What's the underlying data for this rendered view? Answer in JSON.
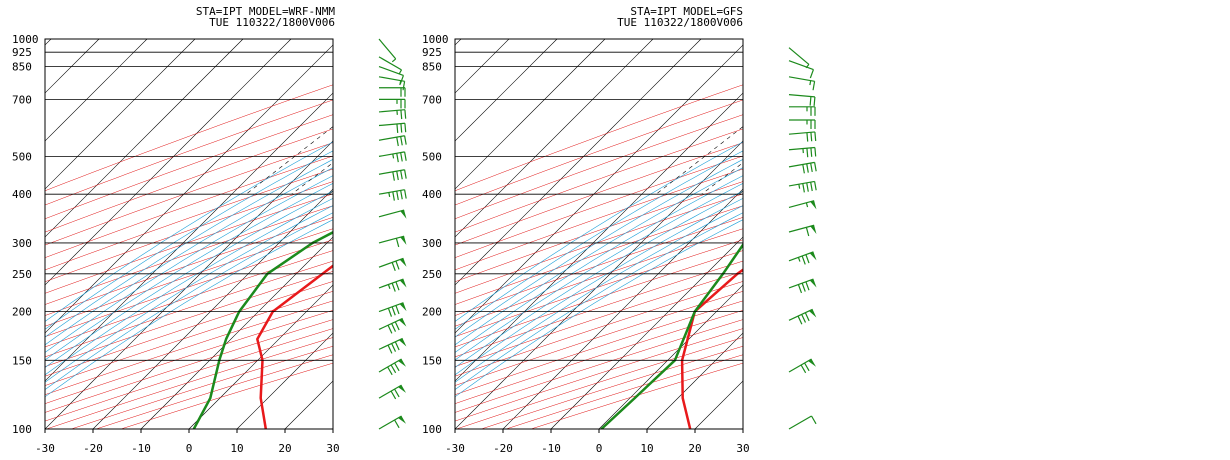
{
  "charts": [
    {
      "header_line1": "STA=IPT    MODEL=WRF-NMM",
      "header_line2": "TUE 110322/1800V006",
      "model": "WRF-NMM"
    },
    {
      "header_line1": "STA=IPT    MODEL=GFS",
      "header_line2": "TUE 110322/1800V006",
      "model": "GFS"
    }
  ],
  "colors": {
    "temperature": "#e8191b",
    "dewpoint": "#1c8a1c",
    "wind_barb": "#1c8a1c",
    "isotherm": "#000000",
    "dry_adiabat": "#e01010",
    "moist_adiabat": "#1ea0d8",
    "mixing_ratio": "#000000",
    "isobar": "#000000"
  },
  "chart_data": [
    {
      "type": "line",
      "subtype": "skew-t log-p sounding",
      "title": "STA=IPT    MODEL=WRF-NMM",
      "subtitle": "TUE 110322/1800V006",
      "xlim": [
        -30,
        30
      ],
      "ylim": [
        1000,
        100
      ],
      "y_scale": "log",
      "x_ticks": [
        -30,
        -20,
        -10,
        0,
        10,
        20,
        30
      ],
      "y_ticks": [
        1000,
        925,
        850,
        700,
        500,
        400,
        300,
        250,
        200,
        150,
        100
      ],
      "grid": true,
      "series": [
        {
          "values": [
            [
              1000,
              8.5
            ],
            [
              975,
              7
            ],
            [
              925,
              4
            ],
            [
              900,
              3
            ],
            [
              870,
              6.5
            ],
            [
              850,
              8.5
            ],
            [
              800,
              11
            ],
            [
              700,
              10.5
            ],
            [
              600,
              9
            ],
            [
              500,
              7.2
            ],
            [
              450,
              6.5
            ],
            [
              400,
              4
            ],
            [
              350,
              1
            ],
            [
              300,
              -2.5
            ],
            [
              250,
              -4.5
            ],
            [
              200,
              -7
            ],
            [
              170,
              -4.5
            ],
            [
              150,
              1
            ],
            [
              120,
              8.5
            ],
            [
              100,
              16
            ]
          ]
        },
        {
          "values": [
            [
              1000,
              -0.5
            ],
            [
              975,
              -0.8
            ],
            [
              925,
              -0.5
            ],
            [
              880,
              -0.3
            ],
            [
              850,
              -5
            ],
            [
              800,
              -16
            ],
            [
              700,
              -19
            ],
            [
              650,
              -14
            ],
            [
              550,
              -9
            ],
            [
              500,
              -10
            ],
            [
              450,
              -4
            ],
            [
              400,
              -4
            ],
            [
              350,
              -8
            ],
            [
              300,
              -13
            ],
            [
              250,
              -16
            ],
            [
              200,
              -14
            ],
            [
              170,
              -11
            ],
            [
              150,
              -8
            ],
            [
              120,
              -2
            ],
            [
              100,
              1
            ]
          ]
        }
      ],
      "wind_barbs": [
        {
          "p": 100,
          "speed_kt": 60,
          "dir": 240
        },
        {
          "p": 120,
          "speed_kt": 70,
          "dir": 240
        },
        {
          "p": 140,
          "speed_kt": 80,
          "dir": 240
        },
        {
          "p": 160,
          "speed_kt": 80,
          "dir": 245
        },
        {
          "p": 180,
          "speed_kt": 80,
          "dir": 245
        },
        {
          "p": 200,
          "speed_kt": 80,
          "dir": 250
        },
        {
          "p": 230,
          "speed_kt": 75,
          "dir": 250
        },
        {
          "p": 260,
          "speed_kt": 70,
          "dir": 250
        },
        {
          "p": 300,
          "speed_kt": 60,
          "dir": 255
        },
        {
          "p": 350,
          "speed_kt": 50,
          "dir": 255
        },
        {
          "p": 400,
          "speed_kt": 45,
          "dir": 260
        },
        {
          "p": 450,
          "speed_kt": 40,
          "dir": 260
        },
        {
          "p": 500,
          "speed_kt": 35,
          "dir": 260
        },
        {
          "p": 550,
          "speed_kt": 30,
          "dir": 260
        },
        {
          "p": 600,
          "speed_kt": 30,
          "dir": 265
        },
        {
          "p": 650,
          "speed_kt": 25,
          "dir": 265
        },
        {
          "p": 700,
          "speed_kt": 25,
          "dir": 270
        },
        {
          "p": 750,
          "speed_kt": 20,
          "dir": 270
        },
        {
          "p": 800,
          "speed_kt": 15,
          "dir": 280
        },
        {
          "p": 850,
          "speed_kt": 10,
          "dir": 290
        },
        {
          "p": 900,
          "speed_kt": 5,
          "dir": 300
        },
        {
          "p": 1000,
          "speed_kt": 5,
          "dir": 320
        }
      ]
    },
    {
      "type": "line",
      "subtype": "skew-t log-p sounding",
      "title": "STA=IPT    MODEL=GFS",
      "subtitle": "TUE 110322/1800V006",
      "xlim": [
        -30,
        30
      ],
      "ylim": [
        1000,
        100
      ],
      "y_scale": "log",
      "x_ticks": [
        -30,
        -20,
        -10,
        0,
        10,
        20,
        30
      ],
      "y_ticks": [
        1000,
        925,
        850,
        700,
        500,
        400,
        300,
        250,
        200,
        150,
        100
      ],
      "grid": true,
      "series": [
        {
          "values": [
            [
              1000,
              7
            ],
            [
              975,
              5
            ],
            [
              925,
              3.5
            ],
            [
              900,
              5
            ],
            [
              850,
              9
            ],
            [
              800,
              11
            ],
            [
              700,
              11.5
            ],
            [
              600,
              9.5
            ],
            [
              500,
              7.5
            ],
            [
              450,
              6.5
            ],
            [
              400,
              5
            ],
            [
              350,
              2
            ],
            [
              300,
              -1
            ],
            [
              250,
              -3.5
            ],
            [
              200,
              -4.5
            ],
            [
              150,
              3
            ],
            [
              120,
              11
            ],
            [
              100,
              19
            ]
          ]
        },
        {
          "values": [
            [
              1000,
              1.5
            ],
            [
              960,
              1.5
            ],
            [
              930,
              2
            ],
            [
              900,
              -6
            ],
            [
              850,
              -13
            ],
            [
              780,
              -24
            ],
            [
              740,
              -26
            ],
            [
              700,
              -24
            ],
            [
              650,
              -20
            ],
            [
              600,
              -9
            ],
            [
              550,
              -6
            ],
            [
              500,
              -3
            ],
            [
              450,
              1.5
            ],
            [
              400,
              -0.5
            ],
            [
              350,
              -5
            ],
            [
              300,
              -8.5
            ],
            [
              250,
              -6.5
            ],
            [
              200,
              -4.5
            ],
            [
              150,
              1.5
            ],
            [
              120,
              1
            ],
            [
              100,
              0.5
            ]
          ]
        }
      ],
      "wind_barbs": [
        {
          "p": 100,
          "speed_kt": 10,
          "dir": 240
        },
        {
          "p": 140,
          "speed_kt": 70,
          "dir": 240
        },
        {
          "p": 190,
          "speed_kt": 80,
          "dir": 245
        },
        {
          "p": 230,
          "speed_kt": 80,
          "dir": 250
        },
        {
          "p": 270,
          "speed_kt": 75,
          "dir": 250
        },
        {
          "p": 320,
          "speed_kt": 60,
          "dir": 255
        },
        {
          "p": 370,
          "speed_kt": 55,
          "dir": 255
        },
        {
          "p": 420,
          "speed_kt": 45,
          "dir": 260
        },
        {
          "p": 470,
          "speed_kt": 40,
          "dir": 260
        },
        {
          "p": 520,
          "speed_kt": 35,
          "dir": 265
        },
        {
          "p": 570,
          "speed_kt": 30,
          "dir": 265
        },
        {
          "p": 620,
          "speed_kt": 25,
          "dir": 270
        },
        {
          "p": 670,
          "speed_kt": 25,
          "dir": 270
        },
        {
          "p": 720,
          "speed_kt": 20,
          "dir": 275
        },
        {
          "p": 800,
          "speed_kt": 15,
          "dir": 280
        },
        {
          "p": 880,
          "speed_kt": 10,
          "dir": 290
        },
        {
          "p": 950,
          "speed_kt": 5,
          "dir": 310
        }
      ]
    }
  ]
}
